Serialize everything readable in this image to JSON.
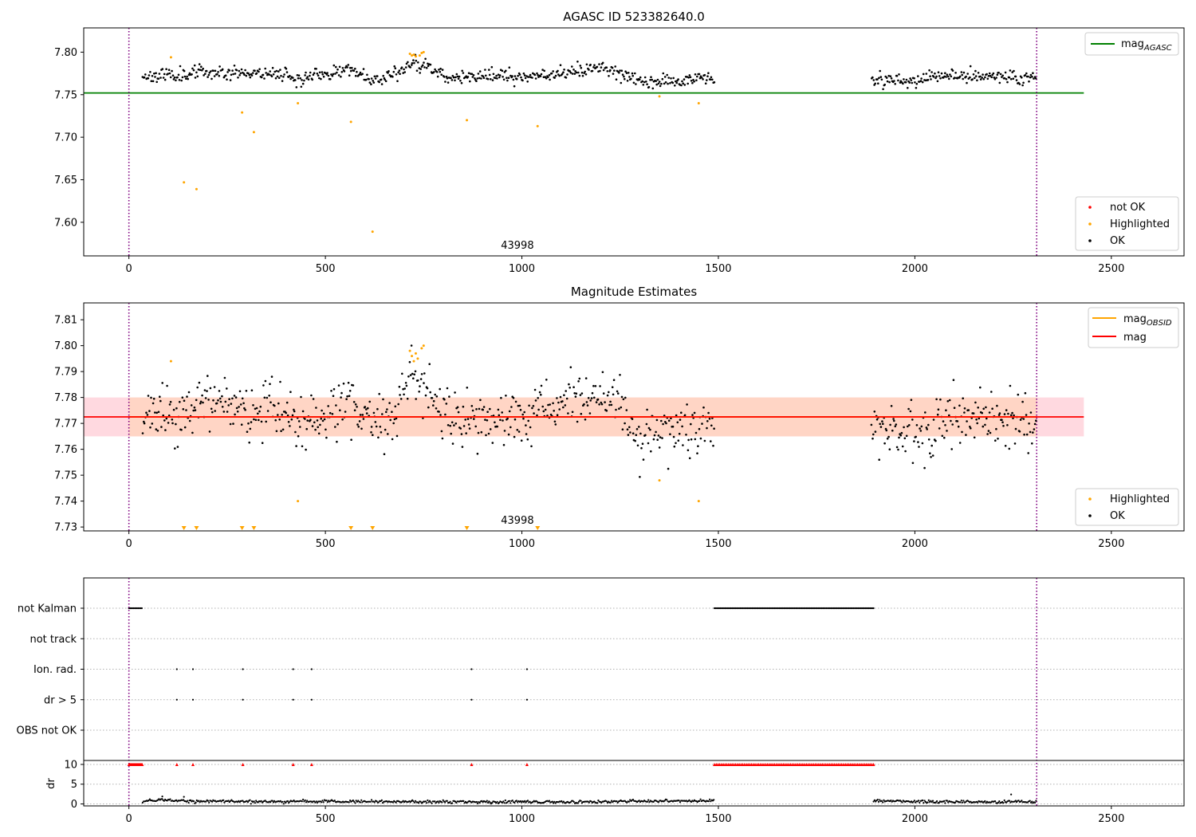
{
  "colors": {
    "ok": "#000000",
    "highlighted": "#ffa500",
    "not_ok": "#ff0000",
    "mag_agasc_line": "#008000",
    "mag_line": "#ff0000",
    "mag_obsid_line": "#ffa500",
    "band_pink": "#ffc0cb",
    "band_salmon": "#ffd4bf",
    "obsid_window": "#800080"
  },
  "chart_data": [
    {
      "type": "scatter",
      "title": "AGASC ID 523382640.0",
      "xlim": [
        -115,
        2685
      ],
      "ylim": [
        7.5605,
        7.8285
      ],
      "xticks": [
        0,
        500,
        1000,
        1500,
        2000,
        2500
      ],
      "yticks": [
        7.6,
        7.65,
        7.7,
        7.75,
        7.8
      ],
      "ytick_labels": [
        "7.60",
        "7.65",
        "7.70",
        "7.75",
        "7.80"
      ],
      "grid": false,
      "obsid_label": {
        "text": "43998",
        "x": 1155
      },
      "obsid_window": [
        0,
        2310
      ],
      "mag_agasc": {
        "value": 7.752,
        "x_range": [
          -115,
          2430
        ]
      },
      "legend_lines": [
        {
          "label": "mag",
          "subscript": "AGASC",
          "color": "#008000"
        }
      ],
      "legend_lines_placement": "top-right",
      "legend_points": [
        {
          "label": "not OK",
          "color": "#ff0000"
        },
        {
          "label": "Highlighted",
          "color": "#ffa500"
        },
        {
          "label": "OK",
          "color": "#000000"
        }
      ],
      "legend_points_placement": "bottom-right",
      "ok_trend": [
        [
          35,
          7.772
        ],
        [
          100,
          7.773
        ],
        [
          200,
          7.777
        ],
        [
          300,
          7.776
        ],
        [
          400,
          7.775
        ],
        [
          430,
          7.768
        ],
        [
          500,
          7.774
        ],
        [
          560,
          7.78
        ],
        [
          620,
          7.768
        ],
        [
          680,
          7.775
        ],
        [
          720,
          7.788
        ],
        [
          760,
          7.782
        ],
        [
          820,
          7.77
        ],
        [
          900,
          7.772
        ],
        [
          1000,
          7.772
        ],
        [
          1100,
          7.776
        ],
        [
          1200,
          7.781
        ],
        [
          1250,
          7.776
        ],
        [
          1300,
          7.765
        ],
        [
          1350,
          7.766
        ],
        [
          1420,
          7.768
        ],
        [
          1490,
          7.77
        ],
        [
          1890,
          7.768
        ],
        [
          1950,
          7.768
        ],
        [
          2000,
          7.767
        ],
        [
          2100,
          7.773
        ],
        [
          2200,
          7.771
        ],
        [
          2310,
          7.77
        ]
      ],
      "ok_noise": 0.0065,
      "ok_spacing": 2.4,
      "highlighted_points": [
        [
          107,
          7.794
        ],
        [
          140,
          7.647
        ],
        [
          172,
          7.639
        ],
        [
          288,
          7.729
        ],
        [
          318,
          7.706
        ],
        [
          430,
          7.74
        ],
        [
          565,
          7.718
        ],
        [
          620,
          7.589
        ],
        [
          715,
          7.798
        ],
        [
          720,
          7.796
        ],
        [
          725,
          7.797
        ],
        [
          730,
          7.795
        ],
        [
          740,
          7.796
        ],
        [
          745,
          7.799
        ],
        [
          750,
          7.8
        ],
        [
          860,
          7.72
        ],
        [
          1040,
          7.713
        ],
        [
          1350,
          7.748
        ],
        [
          1450,
          7.74
        ]
      ]
    },
    {
      "type": "scatter",
      "title": "Magnitude Estimates",
      "xlim": [
        -115,
        2685
      ],
      "ylim": [
        7.7285,
        7.8165
      ],
      "xticks": [
        0,
        500,
        1000,
        1500,
        2000,
        2500
      ],
      "yticks": [
        7.73,
        7.74,
        7.75,
        7.76,
        7.77,
        7.78,
        7.79,
        7.8,
        7.81
      ],
      "ytick_labels": [
        "7.73",
        "7.74",
        "7.75",
        "7.76",
        "7.77",
        "7.78",
        "7.79",
        "7.80",
        "7.81"
      ],
      "grid": false,
      "obsid_label": {
        "text": "43998",
        "x": 1155
      },
      "obsid_window": [
        0,
        2310
      ],
      "mag": {
        "value": 7.7725,
        "band": [
          7.765,
          7.78
        ],
        "x_range": [
          -115,
          2430
        ]
      },
      "mag_obsid": {
        "value": 7.7725,
        "band": [
          7.765,
          7.78
        ],
        "x_range": [
          0,
          2310
        ]
      },
      "legend_lines": [
        {
          "label": "mag",
          "subscript": "OBSID",
          "color": "#ffa500"
        },
        {
          "label": "mag",
          "subscript": "",
          "color": "#ff0000"
        }
      ],
      "legend_lines_placement": "top-right",
      "legend_points": [
        {
          "label": "Highlighted",
          "color": "#ffa500"
        },
        {
          "label": "OK",
          "color": "#000000"
        }
      ],
      "legend_points_placement": "bottom-right",
      "highlighted_points": [
        [
          107,
          7.794
        ],
        [
          715,
          7.798
        ],
        [
          720,
          7.796
        ],
        [
          725,
          7.794
        ],
        [
          730,
          7.797
        ],
        [
          735,
          7.795
        ],
        [
          745,
          7.799
        ],
        [
          750,
          7.8
        ],
        [
          430,
          7.74
        ],
        [
          1350,
          7.748
        ],
        [
          1450,
          7.74
        ]
      ],
      "below_range_markers": [
        140,
        172,
        288,
        318,
        565,
        620,
        860,
        1040
      ]
    },
    {
      "type": "scatter",
      "title": "",
      "xlim": [
        -115,
        2685
      ],
      "xticks": [
        0,
        500,
        1000,
        1500,
        2000,
        2500
      ],
      "obsid_window": [
        0,
        2310
      ],
      "flag_rows": [
        "not Kalman",
        "not track",
        "Ion. rad.",
        "dr > 5",
        "OBS not OK"
      ],
      "flags": {
        "not Kalman": {
          "segments": [
            [
              0,
              35,
              3
            ],
            [
              1490,
              1895,
              3
            ]
          ]
        },
        "not track": {
          "segments": []
        },
        "Ion. rad.": {
          "points": [
            122,
            163,
            290,
            418,
            465,
            872,
            1013
          ]
        },
        "dr > 5": {
          "points": [
            122,
            163,
            290,
            418,
            465,
            872,
            1013
          ]
        },
        "OBS not OK": {
          "points": []
        }
      },
      "dr_panel": {
        "ylabel": "dr",
        "ylim": [
          -0.5,
          11
        ],
        "yticks": [
          0,
          5,
          10
        ],
        "clipped_value": 10,
        "clipped_segments": [
          [
            0,
            35,
            2
          ],
          [
            1490,
            1895,
            4.5
          ]
        ],
        "clipped_points": [
          122,
          163,
          290,
          418,
          465,
          872,
          1013
        ],
        "trend": [
          [
            35,
            0.6
          ],
          [
            80,
            1.0
          ],
          [
            150,
            0.7
          ],
          [
            300,
            0.6
          ],
          [
            600,
            0.6
          ],
          [
            900,
            0.5
          ],
          [
            1200,
            0.5
          ],
          [
            1300,
            0.7
          ],
          [
            1490,
            0.8
          ],
          [
            1895,
            0.8
          ],
          [
            2100,
            0.5
          ],
          [
            2310,
            0.5
          ]
        ],
        "outliers": [
          [
            85,
            1.9
          ],
          [
            140,
            1.8
          ],
          [
            2245,
            2.4
          ]
        ]
      }
    }
  ]
}
